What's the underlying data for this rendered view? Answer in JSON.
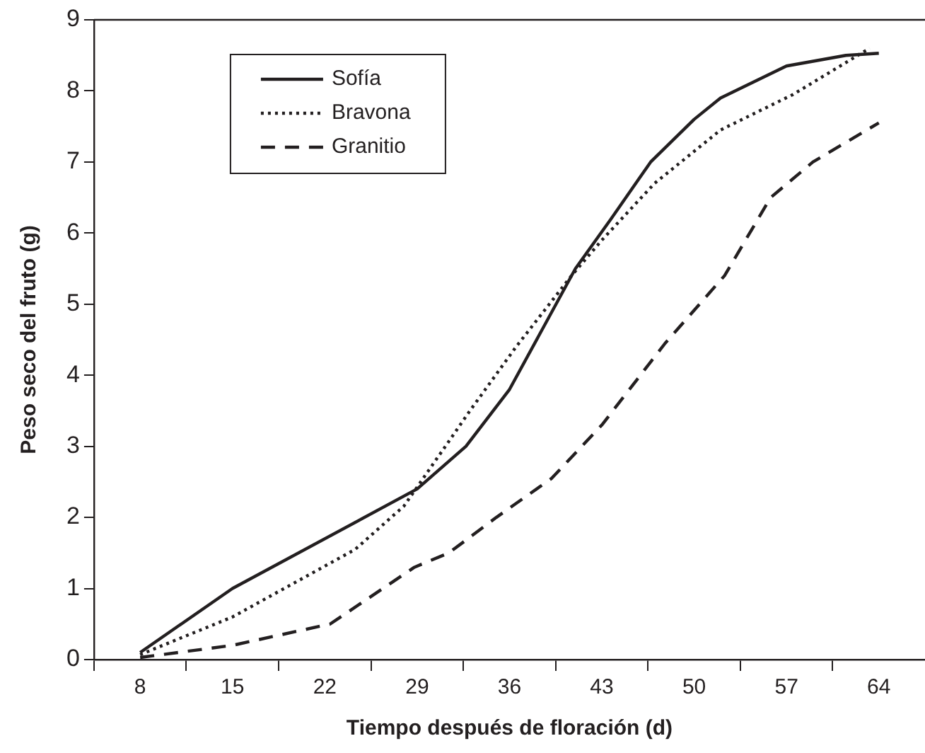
{
  "chart_data": {
    "type": "line",
    "xlabel": "Tiempo después de floración (d)",
    "ylabel": "Peso seco del fruto (g)",
    "xlim": [
      4.5,
      67.5
    ],
    "ylim": [
      0,
      9
    ],
    "xticks": [
      {
        "value": 4.5,
        "label": null
      },
      8,
      {
        "value": 11.5,
        "label": null
      },
      15,
      {
        "value": 18.5,
        "label": null
      },
      22,
      {
        "value": 25.5,
        "label": null
      },
      29,
      {
        "value": 32.5,
        "label": null
      },
      36,
      {
        "value": 39.5,
        "label": null
      },
      43,
      {
        "value": 46.5,
        "label": null
      },
      50,
      {
        "value": 53.5,
        "label": null
      },
      57,
      {
        "value": 60.5,
        "label": null
      },
      64
    ],
    "yticks": [
      0,
      1,
      2,
      3,
      4,
      5,
      6,
      7,
      8,
      9
    ],
    "grid": false,
    "legend": "top left",
    "marker": "none",
    "series": [
      {
        "name": "Sofía",
        "color": "#231f20",
        "line_style": "solid",
        "x": [
          8,
          15,
          29,
          32.7,
          36,
          41,
          43.7,
          46.7,
          50,
          52,
          57,
          61.5,
          64
        ],
        "values": [
          0.1,
          1.0,
          2.4,
          3.0,
          3.8,
          5.5,
          6.2,
          7.0,
          7.6,
          7.9,
          8.35,
          8.5,
          8.53
        ]
      },
      {
        "name": "Bravona",
        "color": "#231f20",
        "line_style": "dotted",
        "x": [
          8,
          15,
          24.3,
          28,
          31.4,
          33,
          36.5,
          40.7,
          43,
          47,
          52,
          57.5,
          63.3
        ],
        "values": [
          0.07,
          0.6,
          1.55,
          2.16,
          3.07,
          3.5,
          4.4,
          5.4,
          5.9,
          6.7,
          7.45,
          7.95,
          8.6
        ]
      },
      {
        "name": "Granitio",
        "color": "#231f20",
        "line_style": "dashed",
        "x": [
          8,
          15,
          22.4,
          28.8,
          31.4,
          35,
          39.2,
          43,
          47.8,
          52.3,
          55.8,
          59,
          64
        ],
        "values": [
          0.03,
          0.2,
          0.5,
          1.3,
          1.5,
          2.0,
          2.55,
          3.3,
          4.45,
          5.4,
          6.5,
          7.0,
          7.55
        ]
      }
    ]
  }
}
